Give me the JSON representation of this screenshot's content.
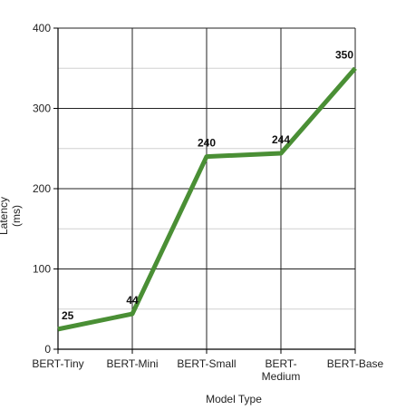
{
  "chart_data": {
    "type": "line",
    "categories": [
      "BERT-Tiny",
      "BERT-Mini",
      "BERT-Small",
      "BERT-\nMedium",
      "BERT-Base"
    ],
    "series": [
      {
        "values": [
          25,
          44,
          240,
          244,
          350
        ],
        "color": "#4a8f35"
      }
    ],
    "xlabel": "Model Type",
    "ylabel": "Latency\n(ms)",
    "ylim": [
      0,
      400
    ],
    "yticks": [
      0,
      100,
      200,
      300,
      400
    ],
    "minor_grid": true,
    "grid": true,
    "data_labels": true
  }
}
